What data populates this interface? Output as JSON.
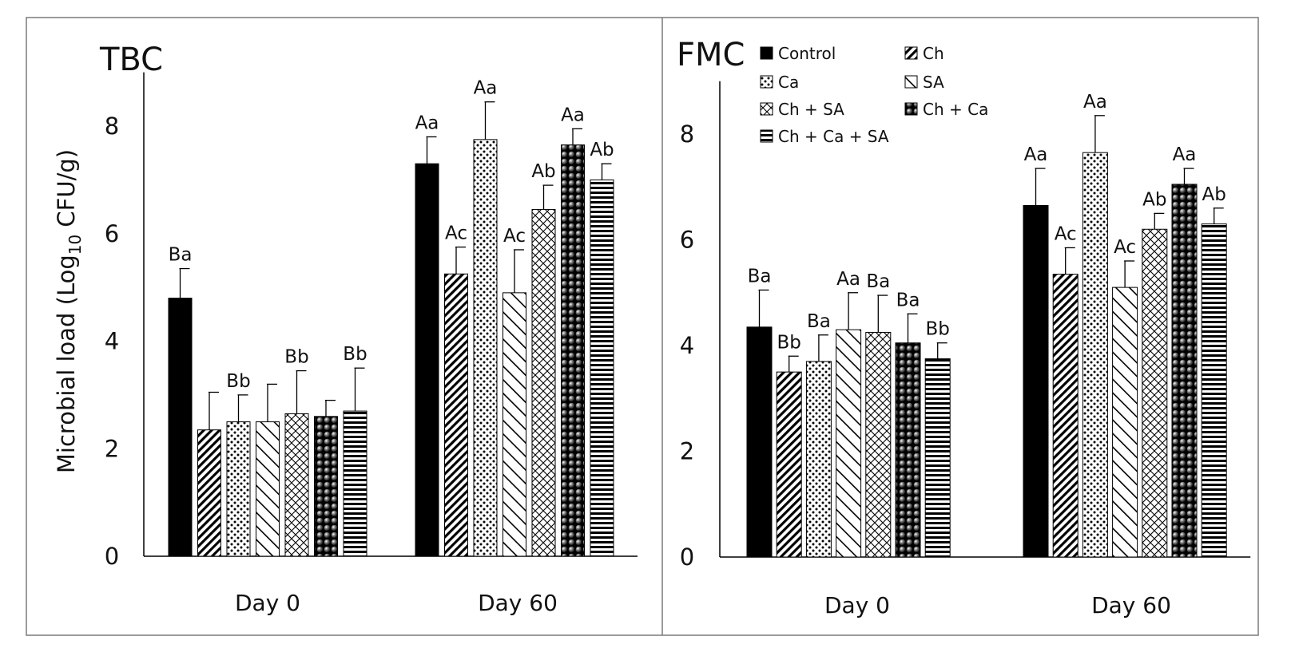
{
  "figure": {
    "y_axis_label_prefix": "Microbial load (Log",
    "y_axis_label_sub": "10",
    "y_axis_label_suffix": " CFU/g)"
  },
  "legend": {
    "entries": [
      {
        "name": "Control",
        "pattern": "solid"
      },
      {
        "name": "Ch",
        "pattern": "diag-back"
      },
      {
        "name": "Ca",
        "pattern": "dots"
      },
      {
        "name": "SA",
        "pattern": "diag-fwd"
      },
      {
        "name": "Ch + SA",
        "pattern": "cross"
      },
      {
        "name": "Ch + Ca",
        "pattern": "balls"
      },
      {
        "name": "Ch + Ca + SA",
        "pattern": "hstripes"
      }
    ]
  },
  "chart_data": [
    {
      "type": "bar",
      "title": "TBC",
      "xlabel": "",
      "ylabel": "Microbial load (Log10 CFU/g)",
      "ylim": [
        0,
        9
      ],
      "yticks": [
        0,
        2,
        4,
        6,
        8
      ],
      "categories": [
        "Day 0",
        "Day 60"
      ],
      "series": [
        {
          "name": "Control",
          "values": [
            4.8,
            7.3
          ],
          "errors": [
            0.55,
            0.5
          ],
          "labels": [
            "Ba",
            "Aa"
          ]
        },
        {
          "name": "Ch",
          "values": [
            2.35,
            5.25
          ],
          "errors": [
            0.7,
            0.5
          ],
          "labels": [
            "",
            "Ac"
          ]
        },
        {
          "name": "Ca",
          "values": [
            2.5,
            7.75
          ],
          "errors": [
            0.5,
            0.7
          ],
          "labels": [
            "Bb",
            "Aa"
          ]
        },
        {
          "name": "SA",
          "values": [
            2.5,
            4.9
          ],
          "errors": [
            0.7,
            0.8
          ],
          "labels": [
            "",
            "Ac"
          ]
        },
        {
          "name": "Ch + SA",
          "values": [
            2.65,
            6.45
          ],
          "errors": [
            0.8,
            0.45
          ],
          "labels": [
            "Bb",
            "Ab"
          ]
        },
        {
          "name": "Ch + Ca",
          "values": [
            2.6,
            7.65
          ],
          "errors": [
            0.3,
            0.3
          ],
          "labels": [
            "",
            "Aa"
          ]
        },
        {
          "name": "Ch + Ca + SA",
          "values": [
            2.7,
            7.0
          ],
          "errors": [
            0.8,
            0.3
          ],
          "labels": [
            "Bb",
            "Ab"
          ]
        }
      ]
    },
    {
      "type": "bar",
      "title": "FMC",
      "xlabel": "",
      "ylabel": "",
      "ylim": [
        0,
        9
      ],
      "yticks": [
        0,
        2,
        4,
        6,
        8
      ],
      "categories": [
        "Day 0",
        "Day 60"
      ],
      "series": [
        {
          "name": "Control",
          "values": [
            4.35,
            6.65
          ],
          "errors": [
            0.7,
            0.7
          ],
          "labels": [
            "Ba",
            "Aa"
          ]
        },
        {
          "name": "Ch",
          "values": [
            3.5,
            5.35
          ],
          "errors": [
            0.3,
            0.5
          ],
          "labels": [
            "Bb",
            "Ac"
          ]
        },
        {
          "name": "Ca",
          "values": [
            3.7,
            7.65
          ],
          "errors": [
            0.5,
            0.7
          ],
          "labels": [
            "Ba",
            "Aa"
          ]
        },
        {
          "name": "SA",
          "values": [
            4.3,
            5.1
          ],
          "errors": [
            0.7,
            0.5
          ],
          "labels": [
            "Aa",
            "Ac"
          ]
        },
        {
          "name": "Ch + SA",
          "values": [
            4.25,
            6.2
          ],
          "errors": [
            0.7,
            0.3
          ],
          "labels": [
            "Ba",
            "Ab"
          ]
        },
        {
          "name": "Ch + Ca",
          "values": [
            4.05,
            7.05
          ],
          "errors": [
            0.55,
            0.3
          ],
          "labels": [
            "Ba",
            "Aa"
          ]
        },
        {
          "name": "Ch + Ca + SA",
          "values": [
            3.75,
            6.3
          ],
          "errors": [
            0.3,
            0.3
          ],
          "labels": [
            "Bb",
            "Ab"
          ]
        }
      ]
    }
  ]
}
